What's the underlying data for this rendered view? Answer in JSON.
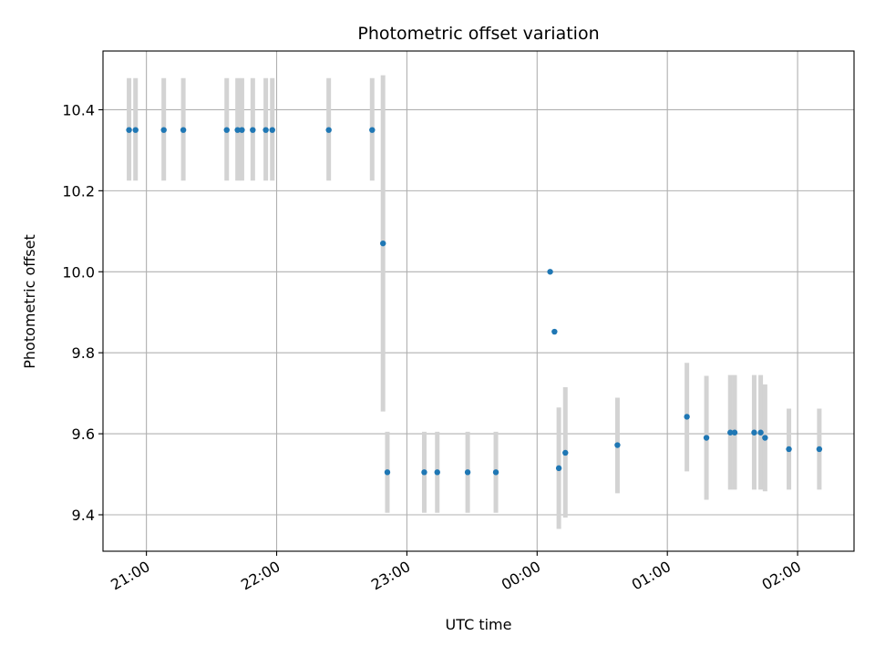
{
  "chart_data": {
    "type": "scatter",
    "title": "Photometric offset variation",
    "xlabel": "UTC time",
    "ylabel": "Photometric offset",
    "grid": true,
    "x_domain": [
      "20:40",
      "02:26"
    ],
    "ylim": [
      9.31,
      10.545
    ],
    "x_ticks": [
      "21:00",
      "22:00",
      "23:00",
      "00:00",
      "01:00",
      "02:00"
    ],
    "y_ticks": [
      "9.4",
      "9.6",
      "9.8",
      "10.0",
      "10.2",
      "10.4"
    ],
    "point_color": "#1f77b4",
    "errorbar_color": "#d3d3d3",
    "points": [
      {
        "x": "20:52",
        "y": 10.35,
        "low": 10.225,
        "high": 10.478
      },
      {
        "x": "20:55",
        "y": 10.35,
        "low": 10.225,
        "high": 10.478
      },
      {
        "x": "21:08",
        "y": 10.35,
        "low": 10.225,
        "high": 10.478
      },
      {
        "x": "21:17",
        "y": 10.35,
        "low": 10.225,
        "high": 10.478
      },
      {
        "x": "21:37",
        "y": 10.35,
        "low": 10.225,
        "high": 10.478
      },
      {
        "x": "21:42",
        "y": 10.35,
        "low": 10.225,
        "high": 10.478
      },
      {
        "x": "21:44",
        "y": 10.35,
        "low": 10.225,
        "high": 10.478
      },
      {
        "x": "21:49",
        "y": 10.35,
        "low": 10.225,
        "high": 10.478
      },
      {
        "x": "21:55",
        "y": 10.35,
        "low": 10.225,
        "high": 10.478
      },
      {
        "x": "21:58",
        "y": 10.35,
        "low": 10.225,
        "high": 10.478
      },
      {
        "x": "22:24",
        "y": 10.35,
        "low": 10.225,
        "high": 10.478
      },
      {
        "x": "22:44",
        "y": 10.35,
        "low": 10.225,
        "high": 10.478
      },
      {
        "x": "22:49",
        "y": 10.07,
        "low": 9.655,
        "high": 10.485
      },
      {
        "x": "22:51",
        "y": 9.505,
        "low": 9.405,
        "high": 9.605
      },
      {
        "x": "23:08",
        "y": 9.505,
        "low": 9.405,
        "high": 9.605
      },
      {
        "x": "23:14",
        "y": 9.505,
        "low": 9.405,
        "high": 9.605
      },
      {
        "x": "23:28",
        "y": 9.505,
        "low": 9.405,
        "high": 9.605
      },
      {
        "x": "23:41",
        "y": 9.505,
        "low": 9.405,
        "high": 9.605
      },
      {
        "x": "00:06",
        "y": 10.0
      },
      {
        "x": "00:08",
        "y": 9.852
      },
      {
        "x": "00:10",
        "y": 9.515,
        "low": 9.365,
        "high": 9.665
      },
      {
        "x": "00:13",
        "y": 9.553,
        "low": 9.393,
        "high": 9.715
      },
      {
        "x": "00:37",
        "y": 9.572,
        "low": 9.453,
        "high": 9.689
      },
      {
        "x": "01:09",
        "y": 9.642,
        "low": 9.507,
        "high": 9.775
      },
      {
        "x": "01:18",
        "y": 9.59,
        "low": 9.437,
        "high": 9.743
      },
      {
        "x": "01:29",
        "y": 9.603,
        "low": 9.462,
        "high": 9.745
      },
      {
        "x": "01:31",
        "y": 9.603,
        "low": 9.462,
        "high": 9.745
      },
      {
        "x": "01:40",
        "y": 9.603,
        "low": 9.462,
        "high": 9.745
      },
      {
        "x": "01:43",
        "y": 9.603,
        "low": 9.462,
        "high": 9.745
      },
      {
        "x": "01:45",
        "y": 9.59,
        "low": 9.458,
        "high": 9.722
      },
      {
        "x": "01:56",
        "y": 9.562,
        "low": 9.462,
        "high": 9.662
      },
      {
        "x": "02:10",
        "y": 9.562,
        "low": 9.462,
        "high": 9.662
      }
    ]
  }
}
